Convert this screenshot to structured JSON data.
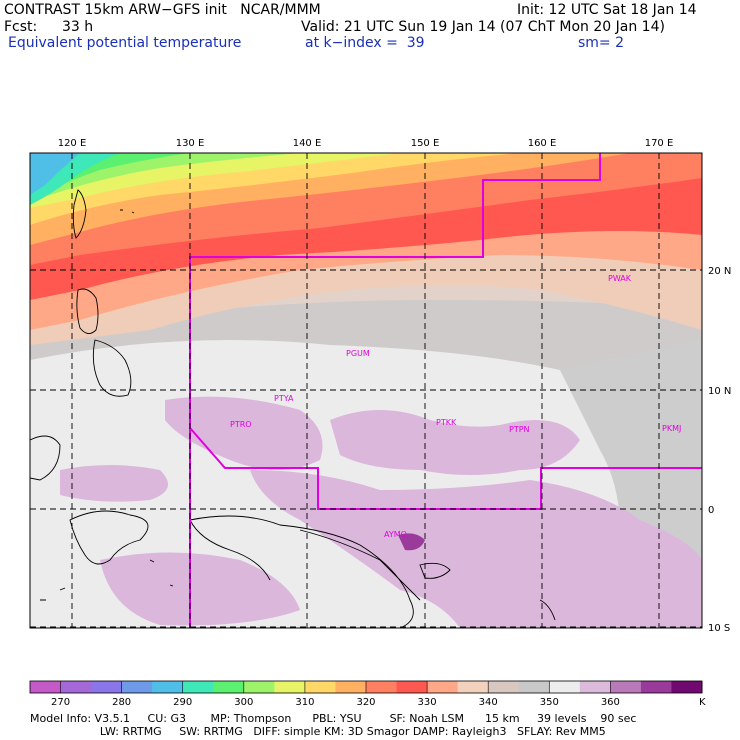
{
  "header": {
    "title_left": "CONTRAST 15km ARW−GFS init   NCAR/MMM",
    "init": "Init: 12 UTC Sat 18 Jan 14",
    "fcst_label": "Fcst:",
    "fcst_value": "33 h",
    "valid": "Valid: 21 UTC Sun 19 Jan 14 (07 ChT Mon 20 Jan 14)",
    "field": "Equivalent potential temperature",
    "level": "at k−index =  39",
    "smoothing": "sm= 2"
  },
  "axes": {
    "lon_labels": [
      "120 E",
      "130 E",
      "140 E",
      "150 E",
      "160 E",
      "170 E"
    ],
    "lat_labels": [
      "20 N",
      "10 N",
      "0",
      "10 S"
    ]
  },
  "stations": [
    "PWAK",
    "PGUM",
    "PTYA",
    "PTRO",
    "PTKK",
    "PTPN",
    "PKMJ",
    "AYMO"
  ],
  "colorbar": {
    "colors": [
      "#c35ac8",
      "#a468d8",
      "#8a76e8",
      "#6f9aea",
      "#4fbfe8",
      "#3fe8b8",
      "#5cf070",
      "#9df46a",
      "#e6f466",
      "#ffd868",
      "#ffb060",
      "#ff8060",
      "#ff5850",
      "#ffa888",
      "#f2d2bc",
      "#d8c8c0",
      "#c8c8c8",
      "#ededed",
      "#dcbadc",
      "#b87ab8",
      "#9a3a9a",
      "#700a70"
    ],
    "labels": [
      "270",
      "280",
      "290",
      "300",
      "310",
      "320",
      "330",
      "340",
      "350",
      "360"
    ],
    "unit": "K"
  },
  "footer": {
    "line1": "Model Info: V3.5.1     CU: G3       MP: Thompson      PBL: YSU        SF: Noah LSM      15 km     39 levels    90 sec",
    "line2": "                    LW: RRTMG     SW: RRTMG   DIFF: simple KM: 3D Smagor DAMP: Rayleigh3   SFLAY: Rev MM5"
  }
}
